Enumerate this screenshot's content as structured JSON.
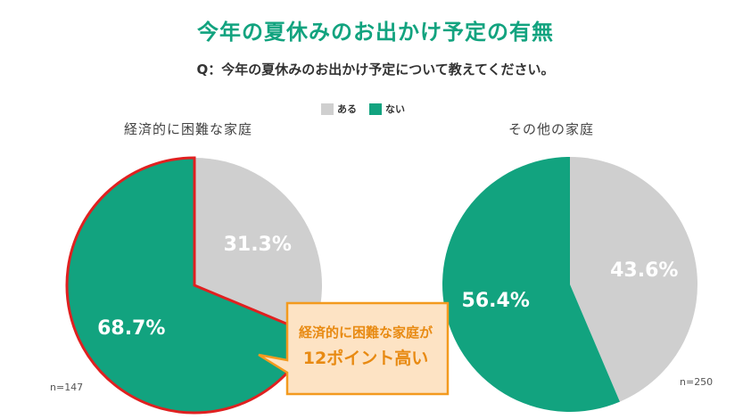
{
  "title": "今年の夏休みのお出かけ予定の有無",
  "question": "Q：今年の夏休みのお出かけ予定について教えてください。",
  "colors": {
    "aru": "#cfcfcf",
    "nai": "#12a37f",
    "highlight": "#e02020",
    "callout_fill": "#fde3c4",
    "callout_border": "#f39a1e",
    "callout_text": "#e88a12"
  },
  "callout": {
    "line1": "経済的に困難な家庭が",
    "line2": "12ポイント高い"
  },
  "chart_data": [
    {
      "type": "pie",
      "title": "経済的に困難な家庭",
      "n_label": "n=147",
      "legend": [
        "ある",
        "ない"
      ],
      "slices": [
        {
          "name": "ある",
          "value": 31.3,
          "label": "31.3%"
        },
        {
          "name": "ない",
          "value": 68.7,
          "label": "68.7%"
        }
      ],
      "highlighted": true
    },
    {
      "type": "pie",
      "title": "その他の家庭",
      "n_label": "n=250",
      "legend": [
        "ある",
        "ない"
      ],
      "slices": [
        {
          "name": "ある",
          "value": 43.6,
          "label": "43.6%"
        },
        {
          "name": "ない",
          "value": 56.4,
          "label": "56.4%"
        }
      ],
      "highlighted": false
    }
  ]
}
